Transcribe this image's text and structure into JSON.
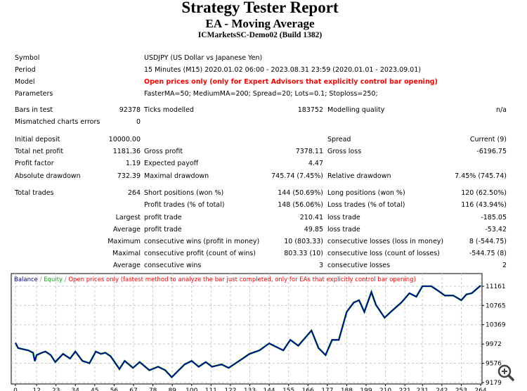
{
  "header": {
    "title": "Strategy Tester Report",
    "subtitle": "EA - Moving Average",
    "server": "ICMarketsSC-Demo02 (Build 1382)"
  },
  "info": [
    {
      "label": "Symbol",
      "value": "USDJPY (US Dollar vs Japanese Yen)"
    },
    {
      "label": "Period",
      "value": "15 Minutes (M15) 2020.01.02 06:00 - 2023.08.31 23:59 (2020.01.01 - 2023.09.01)"
    },
    {
      "label": "Model",
      "value": "Open prices only (only for Expert Advisors that explicitly control bar opening)",
      "highlight": true
    },
    {
      "label": "Parameters",
      "value": "FasterMA=50; MediumMA=200; Spread=20; Lots=0.1; Stoploss=250;"
    }
  ],
  "stats": [
    [
      "Bars in test",
      "92378",
      "Ticks modelled",
      "183752",
      "Modelling quality",
      "n/a"
    ],
    [
      "Mismatched charts errors",
      "0",
      "",
      "",
      "",
      ""
    ],
    [
      "Initial deposit",
      "10000.00",
      "",
      "",
      "Spread",
      "Current (9)"
    ],
    [
      "Total net profit",
      "1181.36",
      "Gross profit",
      "7378.11",
      "Gross loss",
      "-6196.75"
    ],
    [
      "Profit factor",
      "1.19",
      "Expected payoff",
      "4.47",
      "",
      ""
    ],
    [
      "Absolute drawdown",
      "732.39",
      "Maximal drawdown",
      "745.74 (7.45%)",
      "Relative drawdown",
      "7.45% (745.74)"
    ],
    [
      "Total trades",
      "264",
      "Short positions (won %)",
      "144 (50.69%)",
      "Long positions (won %)",
      "120 (62.50%)"
    ],
    [
      "",
      "",
      "Profit trades (% of total)",
      "148 (56.06%)",
      "Loss trades (% of total)",
      "116 (43.94%)"
    ],
    [
      "",
      "Largest",
      "profit trade",
      "210.41",
      "loss trade",
      "-185.05"
    ],
    [
      "",
      "Average",
      "profit trade",
      "49.85",
      "loss trade",
      "-53.42"
    ],
    [
      "",
      "Maximum",
      "consecutive wins (profit in money)",
      "10 (803.33)",
      "consecutive losses (loss in money)",
      "8 (-544.75)"
    ],
    [
      "",
      "Maximal",
      "consecutive profit (count of wins)",
      "803.33 (10)",
      "consecutive loss (count of losses)",
      "-544.75 (8)"
    ],
    [
      "",
      "Average",
      "consecutive wins",
      "3",
      "consecutive losses",
      "2"
    ]
  ],
  "chart_data": {
    "type": "line",
    "legend": {
      "balance": "Balance",
      "sep1": " / ",
      "equity": "Equity",
      "sep2": " / ",
      "note": "Open prices only (fastest method to analyze the bar just completed, only for EAs that explicitly control bar opening)",
      "placement": "top-left"
    },
    "colors": {
      "balance": "#0000a0",
      "equity": "#00c000",
      "note": "#ff0000",
      "grid": "#c8c8c8"
    },
    "grid": true,
    "xlim": [
      0,
      264
    ],
    "ylim": [
      9179,
      11161
    ],
    "x_ticks": [
      0,
      12,
      23,
      34,
      45,
      56,
      67,
      78,
      89,
      100,
      111,
      122,
      133,
      144,
      155,
      166,
      177,
      188,
      199,
      210,
      221,
      231,
      242,
      253,
      264
    ],
    "y_ticks": [
      11161,
      10765,
      10369,
      9972,
      9576,
      9179
    ],
    "series": [
      {
        "name": "Balance",
        "x": [
          0,
          1.5,
          4.4,
          7.3,
          10,
          11,
          12,
          15,
          17,
          20,
          22.6,
          27,
          31,
          34,
          38,
          42,
          45.6,
          48.5,
          51,
          54,
          59,
          62,
          66.7,
          70.5,
          76,
          81,
          85,
          88.7,
          96,
          100,
          104,
          108,
          111.6,
          117,
          121,
          129,
          132.8,
          138.5,
          144,
          148,
          152,
          156,
          160.5,
          168,
          172,
          176,
          179.7,
          183.5,
          188,
          192,
          195,
          198,
          202,
          204.6,
          209.5,
          213,
          219,
          223.6,
          227.5,
          231,
          236,
          240,
          243.7,
          248.5,
          253,
          256,
          259,
          264
        ],
        "y": [
          9995,
          9889,
          9865,
          9841,
          9793,
          9620,
          9745,
          9793,
          9817,
          9745,
          9601,
          9769,
          9673,
          9817,
          9625,
          9577,
          9817,
          9769,
          9793,
          9721,
          9457,
          9625,
          9481,
          9601,
          9433,
          9505,
          9433,
          9289,
          9553,
          9625,
          9505,
          9601,
          9505,
          9553,
          9481,
          9673,
          9769,
          9841,
          9985,
          9913,
          9841,
          10057,
          9937,
          10249,
          9889,
          9745,
          10057,
          10057,
          10633,
          10825,
          10873,
          10633,
          11041,
          10777,
          10513,
          10633,
          10825,
          11017,
          10945,
          11161,
          11161,
          11065,
          10969,
          10969,
          10873,
          10993,
          11017,
          11175
        ]
      }
    ],
    "zoom_icon": "zoom-in-icon"
  }
}
